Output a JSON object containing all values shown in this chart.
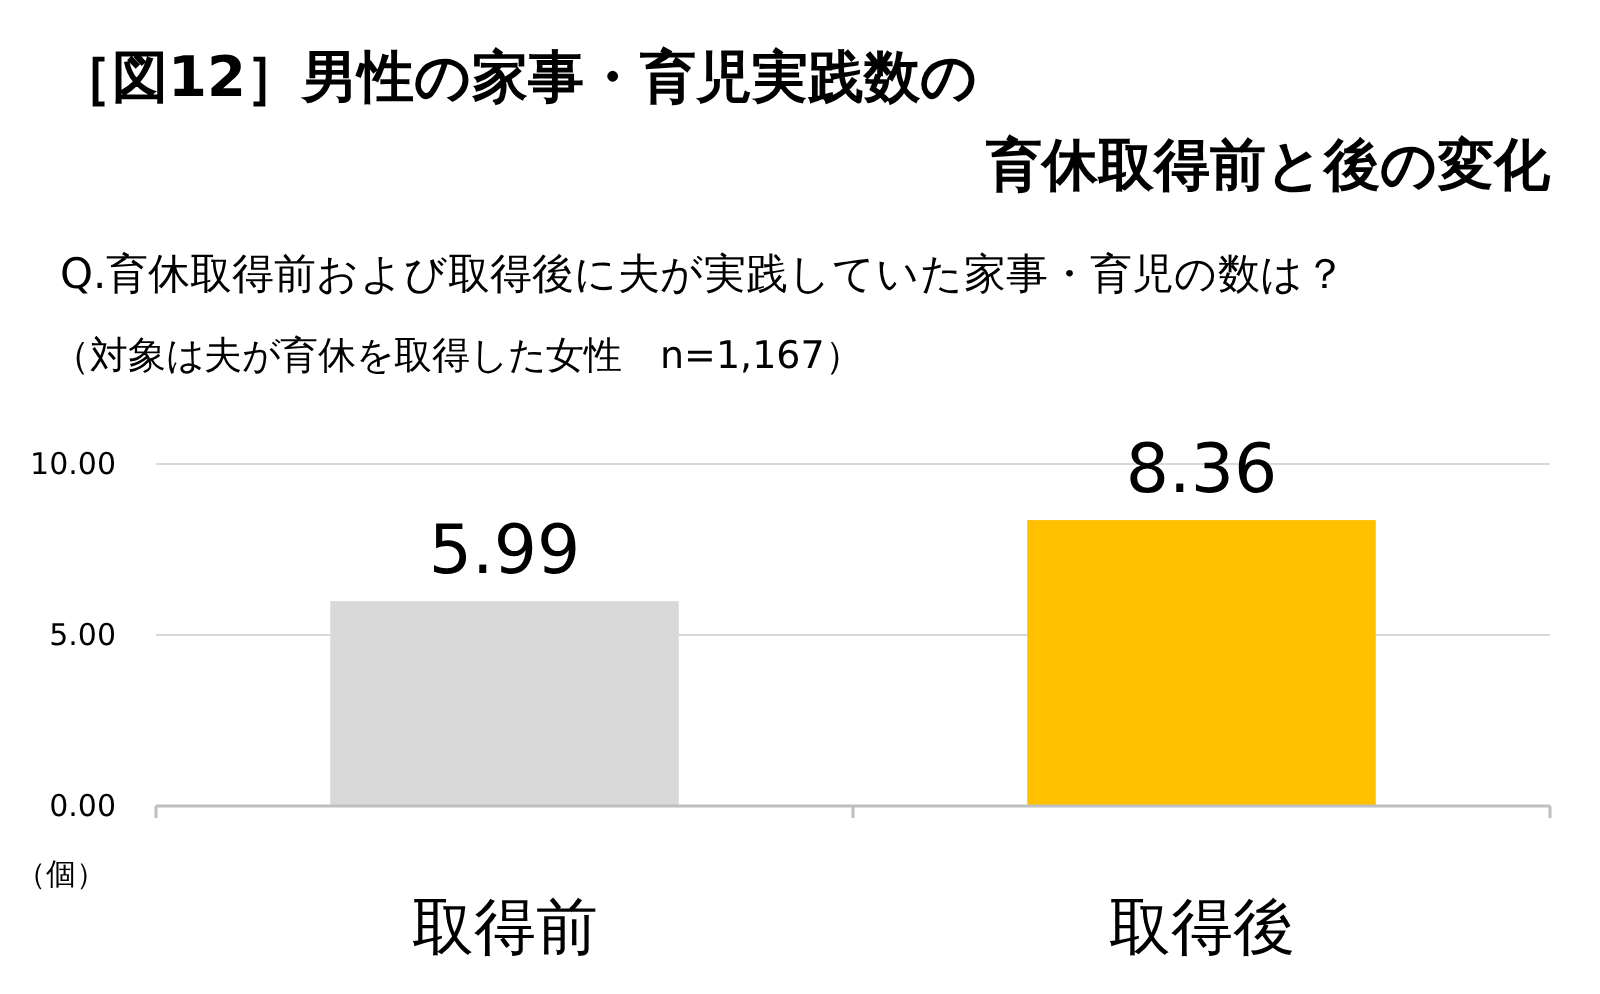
{
  "chart_data": {
    "type": "bar",
    "title": "［図12］男性の家事・育児実践数の",
    "subtitle": "育休取得前と後の変化",
    "annotations": [
      "Q.育休取得前および取得後に夫が実践していた家事・育児の数は？",
      "（対象は夫が育休を取得した女性　n=1,167）"
    ],
    "ylabel": "（個）",
    "categories": [
      "取得前",
      "取得後"
    ],
    "values": [
      5.99,
      8.36
    ],
    "colors": [
      "#d9d9d9",
      "#ffc000"
    ],
    "value_labels": [
      "5.99",
      "8.36"
    ],
    "ylim": [
      0,
      10
    ],
    "yticks": [
      {
        "value": 0,
        "label": "0.00"
      },
      {
        "value": 5,
        "label": "5.00"
      },
      {
        "value": 10,
        "label": "10.00"
      }
    ],
    "grid": "y"
  }
}
